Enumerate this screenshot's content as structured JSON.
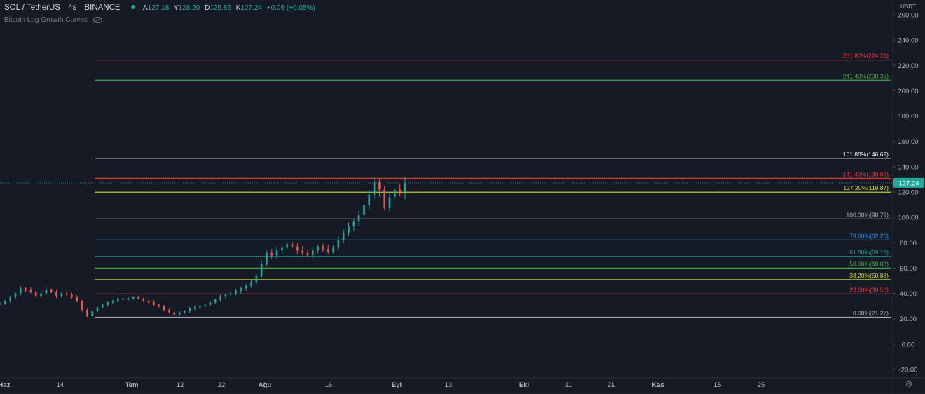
{
  "header": {
    "symbol": "SOL / TetherUS",
    "interval": "4s",
    "exchange": "BINANCE",
    "open_label": "A",
    "open": "127.18",
    "high_label": "Y",
    "high": "128.20",
    "low_label": "D",
    "low": "125.86",
    "close_label": "K",
    "close": "127.24",
    "change": "+0.06 (+0.05%)"
  },
  "indicator": {
    "name": "Bitcoin Log Growth Curves",
    "visibility_icon": "eye-crossed-icon"
  },
  "colors": {
    "background": "#161a25",
    "axis_text": "#b2b5be",
    "up": "#26a69a",
    "down": "#ef5350",
    "price_tag": "#26a69a"
  },
  "chart_data": {
    "type": "candlestick",
    "price_unit": "USDT",
    "current_price": "127.24",
    "y_axis": {
      "ylim": [
        -25,
        265
      ],
      "ticks": [
        "260.00",
        "240.00",
        "220.00",
        "200.00",
        "180.00",
        "160.00",
        "140.00",
        "120.00",
        "100.00",
        "80.00",
        "60.00",
        "40.00",
        "20.00",
        "0.00",
        "-20.00"
      ]
    },
    "x_axis": {
      "ticks": [
        "Haz",
        "14",
        "Tem",
        "12",
        "22",
        "Ağu",
        "16",
        "Eyl",
        "13",
        "Eki",
        "11",
        "21",
        "Kas",
        "15",
        "25"
      ]
    },
    "fibonacci": [
      {
        "label": "261.80%(224.21)",
        "value": 224.21,
        "color": "#f23645"
      },
      {
        "label": "241.40%(208.39)",
        "value": 208.39,
        "color": "#4caf50"
      },
      {
        "label": "161.80%(146.69)",
        "value": 146.69,
        "color": "#ffffff"
      },
      {
        "label": "141.40%(130.88)",
        "value": 130.88,
        "color": "#f23645"
      },
      {
        "label": "127.20%(119.87)",
        "value": 119.87,
        "color": "#cddc39"
      },
      {
        "label": "100.00%(98.79)",
        "value": 98.79,
        "color": "#b2b5be"
      },
      {
        "label": "78.60%(82.20)",
        "value": 82.2,
        "color": "#2196f3"
      },
      {
        "label": "61.80%(69.18)",
        "value": 69.18,
        "color": "#26a69a"
      },
      {
        "label": "50.00%(60.03)",
        "value": 60.03,
        "color": "#4caf50"
      },
      {
        "label": "38.20%(50.88)",
        "value": 50.88,
        "color": "#cddc39"
      },
      {
        "label": "23.60%(39.56)",
        "value": 39.56,
        "color": "#f23645"
      },
      {
        "label": "0.00%(21.27)",
        "value": 21.27,
        "color": "#b2b5be"
      }
    ],
    "series": [
      {
        "name": "SOL / TetherUS",
        "close_path": [
          [
            0,
            32
          ],
          [
            2,
            34
          ],
          [
            4,
            37
          ],
          [
            6,
            40
          ],
          [
            8,
            44
          ],
          [
            10,
            43
          ],
          [
            12,
            41
          ],
          [
            14,
            38
          ],
          [
            16,
            40
          ],
          [
            18,
            43
          ],
          [
            20,
            41
          ],
          [
            22,
            38
          ],
          [
            24,
            40
          ],
          [
            26,
            39
          ],
          [
            28,
            37
          ],
          [
            30,
            34
          ],
          [
            32,
            27
          ],
          [
            34,
            22
          ],
          [
            36,
            26
          ],
          [
            38,
            29
          ],
          [
            40,
            31
          ],
          [
            42,
            33
          ],
          [
            44,
            34
          ],
          [
            46,
            36
          ],
          [
            48,
            35
          ],
          [
            50,
            36
          ],
          [
            52,
            37
          ],
          [
            54,
            36
          ],
          [
            56,
            34
          ],
          [
            58,
            33
          ],
          [
            60,
            31
          ],
          [
            62,
            30
          ],
          [
            64,
            27
          ],
          [
            66,
            25
          ],
          [
            68,
            23
          ],
          [
            70,
            25
          ],
          [
            72,
            26
          ],
          [
            74,
            28
          ],
          [
            76,
            29
          ],
          [
            78,
            30
          ],
          [
            80,
            31
          ],
          [
            82,
            33
          ],
          [
            84,
            35
          ],
          [
            86,
            38
          ],
          [
            88,
            39
          ],
          [
            90,
            40
          ],
          [
            92,
            42
          ],
          [
            94,
            44
          ],
          [
            96,
            46
          ],
          [
            98,
            49
          ],
          [
            100,
            54
          ],
          [
            102,
            63
          ],
          [
            104,
            72
          ],
          [
            106,
            70
          ],
          [
            108,
            74
          ],
          [
            110,
            76
          ],
          [
            112,
            79
          ],
          [
            114,
            77
          ],
          [
            116,
            74
          ],
          [
            118,
            72
          ],
          [
            120,
            70
          ],
          [
            122,
            74
          ],
          [
            124,
            77
          ],
          [
            126,
            75
          ],
          [
            128,
            73
          ],
          [
            130,
            76
          ],
          [
            132,
            82
          ],
          [
            134,
            88
          ],
          [
            136,
            93
          ],
          [
            138,
            97
          ],
          [
            140,
            102
          ],
          [
            142,
            110
          ],
          [
            144,
            118
          ],
          [
            146,
            128
          ],
          [
            148,
            122
          ],
          [
            150,
            108
          ],
          [
            152,
            116
          ],
          [
            154,
            122
          ],
          [
            156,
            120
          ],
          [
            158,
            127.24
          ]
        ]
      }
    ]
  }
}
